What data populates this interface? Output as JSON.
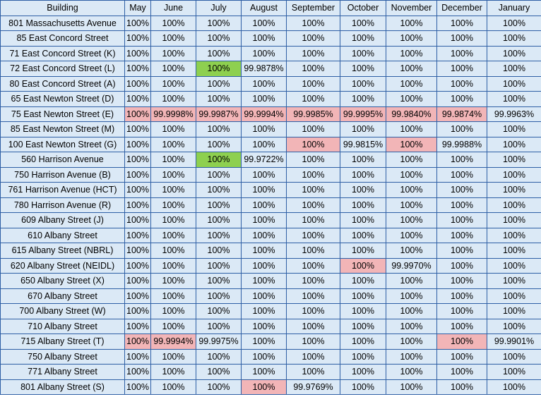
{
  "table": {
    "headers": [
      "Building",
      "May",
      "June",
      "July",
      "August",
      "September",
      "October",
      "November",
      "December",
      "January"
    ],
    "rows": [
      {
        "building": "801 Massachusetts Avenue",
        "values": [
          "100%",
          "100%",
          "100%",
          "100%",
          "100%",
          "100%",
          "100%",
          "100%",
          "100%"
        ]
      },
      {
        "building": "85 East Concord Street",
        "values": [
          "100%",
          "100%",
          "100%",
          "100%",
          "100%",
          "100%",
          "100%",
          "100%",
          "100%"
        ]
      },
      {
        "building": "71 East Concord Street (K)",
        "values": [
          "100%",
          "100%",
          "100%",
          "100%",
          "100%",
          "100%",
          "100%",
          "100%",
          "100%"
        ]
      },
      {
        "building": "72 East Concord Street (L)",
        "values": [
          "100%",
          "100%",
          "100%",
          "99.9878%",
          "100%",
          "100%",
          "100%",
          "100%",
          "100%"
        ]
      },
      {
        "building": "80 East Concord Street (A)",
        "values": [
          "100%",
          "100%",
          "100%",
          "100%",
          "100%",
          "100%",
          "100%",
          "100%",
          "100%"
        ]
      },
      {
        "building": "65 East Newton Street (D)",
        "values": [
          "100%",
          "100%",
          "100%",
          "100%",
          "100%",
          "100%",
          "100%",
          "100%",
          "100%"
        ]
      },
      {
        "building": "75 East Newton Street (E)",
        "values": [
          "100%",
          "99.9998%",
          "99.9987%",
          "99.9994%",
          "99.9985%",
          "99.9995%",
          "99.9840%",
          "99.9874%",
          "99.9963%"
        ]
      },
      {
        "building": "85 East Newton Street (M)",
        "values": [
          "100%",
          "100%",
          "100%",
          "100%",
          "100%",
          "100%",
          "100%",
          "100%",
          "100%"
        ]
      },
      {
        "building": "100 East Newton Street (G)",
        "values": [
          "100%",
          "100%",
          "100%",
          "100%",
          "100%",
          "99.9815%",
          "100%",
          "99.9988%",
          "100%"
        ]
      },
      {
        "building": "560 Harrison Avenue",
        "values": [
          "100%",
          "100%",
          "100%",
          "99.9722%",
          "100%",
          "100%",
          "100%",
          "100%",
          "100%"
        ]
      },
      {
        "building": "750 Harrison Avenue (B)",
        "values": [
          "100%",
          "100%",
          "100%",
          "100%",
          "100%",
          "100%",
          "100%",
          "100%",
          "100%"
        ]
      },
      {
        "building": "761 Harrison Avenue (HCT)",
        "values": [
          "100%",
          "100%",
          "100%",
          "100%",
          "100%",
          "100%",
          "100%",
          "100%",
          "100%"
        ]
      },
      {
        "building": "780 Harrison Avenue (R)",
        "values": [
          "100%",
          "100%",
          "100%",
          "100%",
          "100%",
          "100%",
          "100%",
          "100%",
          "100%"
        ]
      },
      {
        "building": "609 Albany Street (J)",
        "values": [
          "100%",
          "100%",
          "100%",
          "100%",
          "100%",
          "100%",
          "100%",
          "100%",
          "100%"
        ]
      },
      {
        "building": "610 Albany Street",
        "values": [
          "100%",
          "100%",
          "100%",
          "100%",
          "100%",
          "100%",
          "100%",
          "100%",
          "100%"
        ]
      },
      {
        "building": "615 Albany Street (NBRL)",
        "values": [
          "100%",
          "100%",
          "100%",
          "100%",
          "100%",
          "100%",
          "100%",
          "100%",
          "100%"
        ]
      },
      {
        "building": "620 Albany Street (NEIDL)",
        "values": [
          "100%",
          "100%",
          "100%",
          "100%",
          "100%",
          "100%",
          "99.9970%",
          "100%",
          "100%"
        ]
      },
      {
        "building": "650 Albany Street (X)",
        "values": [
          "100%",
          "100%",
          "100%",
          "100%",
          "100%",
          "100%",
          "100%",
          "100%",
          "100%"
        ]
      },
      {
        "building": "670 Albany Street",
        "values": [
          "100%",
          "100%",
          "100%",
          "100%",
          "100%",
          "100%",
          "100%",
          "100%",
          "100%"
        ]
      },
      {
        "building": "700 Albany Street (W)",
        "values": [
          "100%",
          "100%",
          "100%",
          "100%",
          "100%",
          "100%",
          "100%",
          "100%",
          "100%"
        ]
      },
      {
        "building": "710 Albany Street",
        "values": [
          "100%",
          "100%",
          "100%",
          "100%",
          "100%",
          "100%",
          "100%",
          "100%",
          "100%"
        ]
      },
      {
        "building": "715 Albany Street (T)",
        "values": [
          "100%",
          "99.9994%",
          "99.9975%",
          "100%",
          "100%",
          "100%",
          "100%",
          "100%",
          "99.9901%"
        ]
      },
      {
        "building": "750 Albany Street",
        "values": [
          "100%",
          "100%",
          "100%",
          "100%",
          "100%",
          "100%",
          "100%",
          "100%",
          "100%"
        ]
      },
      {
        "building": "771 Albany Street",
        "values": [
          "100%",
          "100%",
          "100%",
          "100%",
          "100%",
          "100%",
          "100%",
          "100%",
          "100%"
        ]
      },
      {
        "building": "801 Albany Street (S)",
        "values": [
          "100%",
          "100%",
          "100%",
          "100%",
          "99.9769%",
          "100%",
          "100%",
          "100%",
          "100%"
        ]
      }
    ],
    "highlights": [
      {
        "row": 3,
        "col": 3,
        "color": "green"
      },
      {
        "row": 6,
        "col": 1,
        "color": "red"
      },
      {
        "row": 6,
        "col": 2,
        "color": "red"
      },
      {
        "row": 6,
        "col": 3,
        "color": "red"
      },
      {
        "row": 6,
        "col": 4,
        "color": "red"
      },
      {
        "row": 6,
        "col": 5,
        "color": "red"
      },
      {
        "row": 6,
        "col": 6,
        "color": "red"
      },
      {
        "row": 6,
        "col": 7,
        "color": "red"
      },
      {
        "row": 6,
        "col": 8,
        "color": "red"
      },
      {
        "row": 8,
        "col": 5,
        "color": "red"
      },
      {
        "row": 8,
        "col": 7,
        "color": "red"
      },
      {
        "row": 9,
        "col": 3,
        "color": "green"
      },
      {
        "row": 16,
        "col": 6,
        "color": "red"
      },
      {
        "row": 21,
        "col": 1,
        "color": "red"
      },
      {
        "row": 21,
        "col": 2,
        "color": "red"
      },
      {
        "row": 21,
        "col": 8,
        "color": "red"
      },
      {
        "row": 24,
        "col": 4,
        "color": "red"
      }
    ]
  },
  "colors": {
    "cell_background": "#dbe9f6",
    "grid_border": "#2e5fa5",
    "highlight_red": "#f2b5b7",
    "highlight_green": "#8ed04f"
  }
}
